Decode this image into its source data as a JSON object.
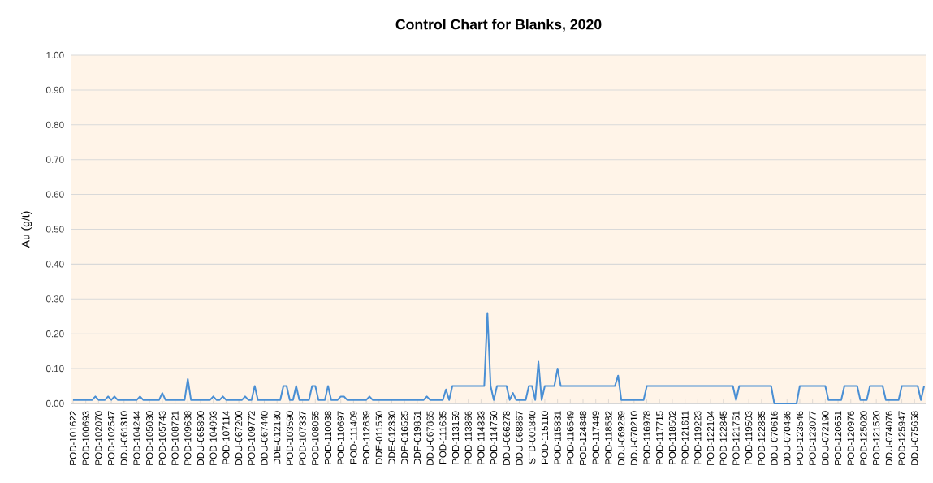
{
  "chart_data": {
    "type": "line",
    "title": "Control Chart for Blanks, 2020",
    "ylabel": "Au (g/t)",
    "categories": [
      "POD-101622",
      null,
      null,
      null,
      "POD-100693",
      null,
      null,
      null,
      "POD-102070",
      null,
      null,
      null,
      "POD-102547",
      null,
      null,
      null,
      "DDU-061310",
      null,
      null,
      null,
      "POD-104244",
      null,
      null,
      null,
      "POD-105030",
      null,
      null,
      null,
      "POD-105743",
      null,
      null,
      null,
      "POD-108721",
      null,
      null,
      null,
      "POD-109638",
      null,
      null,
      null,
      "DDU-065890",
      null,
      null,
      null,
      "POD-104993",
      null,
      null,
      null,
      "POD-107114",
      null,
      null,
      null,
      "DDU-067200",
      null,
      null,
      null,
      "POD-109772",
      null,
      null,
      null,
      "DDU-067440",
      null,
      null,
      null,
      "DDE-012130",
      null,
      null,
      null,
      "POD-103590",
      null,
      null,
      null,
      "POD-107337",
      null,
      null,
      null,
      "POD-108055",
      null,
      null,
      null,
      "POD-110038",
      null,
      null,
      null,
      "POD-110697",
      null,
      null,
      null,
      "POD-111409",
      null,
      null,
      null,
      "POD-112639",
      null,
      null,
      null,
      "DDE-011550",
      null,
      null,
      null,
      "DDE-012330",
      null,
      null,
      null,
      "DDP-016525",
      null,
      null,
      null,
      "DDP-019851",
      null,
      null,
      null,
      "DDU-067865",
      null,
      null,
      null,
      "POD-111635",
      null,
      null,
      null,
      "POD-113159",
      null,
      null,
      null,
      "POD-113866",
      null,
      null,
      null,
      "POD-114333",
      null,
      null,
      null,
      "POD-114750",
      null,
      null,
      null,
      "DDU-066278",
      null,
      null,
      null,
      "DDU-068867",
      null,
      null,
      null,
      "STD-001840",
      null,
      null,
      null,
      "POD-115110",
      null,
      null,
      null,
      "POD-115831",
      null,
      null,
      null,
      "POD-116549",
      null,
      null,
      null,
      "POD-124848",
      null,
      null,
      null,
      "POD-117449",
      null,
      null,
      null,
      "POD-118582",
      null,
      null,
      null,
      "DDU-069289",
      null,
      null,
      null,
      "DDU-070210",
      null,
      null,
      null,
      "POD-116978",
      null,
      null,
      null,
      "POD-117715",
      null,
      null,
      null,
      "POD-118502",
      null,
      null,
      null,
      "POD-121611",
      null,
      null,
      null,
      "POD-119223",
      null,
      null,
      null,
      "POD-122104",
      null,
      null,
      null,
      "POD-122845",
      null,
      null,
      null,
      "POD-121751",
      null,
      null,
      null,
      "POD-119503",
      null,
      null,
      null,
      "POD-122885",
      null,
      null,
      null,
      "DDU-070616",
      null,
      null,
      null,
      "DDU-070436",
      null,
      null,
      null,
      "POD-123546",
      null,
      null,
      null,
      "POD-123077",
      null,
      null,
      null,
      "DDU-072190",
      null,
      null,
      null,
      "POD-120651",
      null,
      null,
      null,
      "POD-120976",
      null,
      null,
      null,
      "POD-125020",
      null,
      null,
      null,
      "POD-121520",
      null,
      null,
      null,
      "DDU-074076",
      null,
      null,
      null,
      "POD-125947",
      null,
      null,
      null,
      "DDU-075658",
      null,
      null,
      null
    ],
    "series": [
      {
        "color": "#4a8fd4",
        "values": [
          0.01,
          0.01,
          0.01,
          0.01,
          0.01,
          0.01,
          0.01,
          0.02,
          0.01,
          0.01,
          0.01,
          0.02,
          0.01,
          0.02,
          0.01,
          0.01,
          0.01,
          0.01,
          0.01,
          0.01,
          0.01,
          0.02,
          0.01,
          0.01,
          0.01,
          0.01,
          0.01,
          0.01,
          0.03,
          0.01,
          0.01,
          0.01,
          0.01,
          0.01,
          0.01,
          0.01,
          0.07,
          0.01,
          0.01,
          0.01,
          0.01,
          0.01,
          0.01,
          0.01,
          0.02,
          0.01,
          0.01,
          0.02,
          0.01,
          0.01,
          0.01,
          0.01,
          0.01,
          0.01,
          0.02,
          0.01,
          0.01,
          0.05,
          0.01,
          0.01,
          0.01,
          0.01,
          0.01,
          0.01,
          0.01,
          0.01,
          0.05,
          0.05,
          0.01,
          0.01,
          0.05,
          0.01,
          0.01,
          0.01,
          0.01,
          0.05,
          0.05,
          0.01,
          0.01,
          0.01,
          0.05,
          0.01,
          0.01,
          0.01,
          0.02,
          0.02,
          0.01,
          0.01,
          0.01,
          0.01,
          0.01,
          0.01,
          0.01,
          0.02,
          0.01,
          0.01,
          0.01,
          0.01,
          0.01,
          0.01,
          0.01,
          0.01,
          0.01,
          0.01,
          0.01,
          0.01,
          0.01,
          0.01,
          0.01,
          0.01,
          0.01,
          0.02,
          0.01,
          0.01,
          0.01,
          0.01,
          0.01,
          0.04,
          0.01,
          0.05,
          0.05,
          0.05,
          0.05,
          0.05,
          0.05,
          0.05,
          0.05,
          0.05,
          0.05,
          0.05,
          0.26,
          0.05,
          0.01,
          0.05,
          0.05,
          0.05,
          0.05,
          0.01,
          0.03,
          0.01,
          0.01,
          0.01,
          0.01,
          0.05,
          0.05,
          0.01,
          0.12,
          0.01,
          0.05,
          0.05,
          0.05,
          0.05,
          0.1,
          0.05,
          0.05,
          0.05,
          0.05,
          0.05,
          0.05,
          0.05,
          0.05,
          0.05,
          0.05,
          0.05,
          0.05,
          0.05,
          0.05,
          0.05,
          0.05,
          0.05,
          0.05,
          0.08,
          0.01,
          0.01,
          0.01,
          0.01,
          0.01,
          0.01,
          0.01,
          0.01,
          0.05,
          0.05,
          0.05,
          0.05,
          0.05,
          0.05,
          0.05,
          0.05,
          0.05,
          0.05,
          0.05,
          0.05,
          0.05,
          0.05,
          0.05,
          0.05,
          0.05,
          0.05,
          0.05,
          0.05,
          0.05,
          0.05,
          0.05,
          0.05,
          0.05,
          0.05,
          0.05,
          0.05,
          0.01,
          0.05,
          0.05,
          0.05,
          0.05,
          0.05,
          0.05,
          0.05,
          0.05,
          0.05,
          0.05,
          0.05,
          0,
          0,
          0,
          0,
          0,
          0,
          0,
          0,
          0.05,
          0.05,
          0.05,
          0.05,
          0.05,
          0.05,
          0.05,
          0.05,
          0.05,
          0.01,
          0.01,
          0.01,
          0.01,
          0.01,
          0.05,
          0.05,
          0.05,
          0.05,
          0.05,
          0.01,
          0.01,
          0.01,
          0.05,
          0.05,
          0.05,
          0.05,
          0.05,
          0.01,
          0.01,
          0.01,
          0.01,
          0.01,
          0.05,
          0.05,
          0.05,
          0.05,
          0.05,
          0.05,
          0.01,
          0.05
        ]
      }
    ],
    "ylim": [
      0,
      1
    ],
    "yticks": [
      {
        "value": 0,
        "label": "0.00"
      },
      {
        "value": 0.1,
        "label": "0.10"
      },
      {
        "value": 0.2,
        "label": "0.20"
      },
      {
        "value": 0.3,
        "label": "0.30"
      },
      {
        "value": 0.4,
        "label": "0.40"
      },
      {
        "value": 0.5,
        "label": "0.50"
      },
      {
        "value": 0.6,
        "label": "0.60"
      },
      {
        "value": 0.7,
        "label": "0.70"
      },
      {
        "value": 0.8,
        "label": "0.80"
      },
      {
        "value": 0.9,
        "label": "0.90"
      },
      {
        "value": 1,
        "label": "1.00"
      }
    ],
    "grid": "y"
  }
}
